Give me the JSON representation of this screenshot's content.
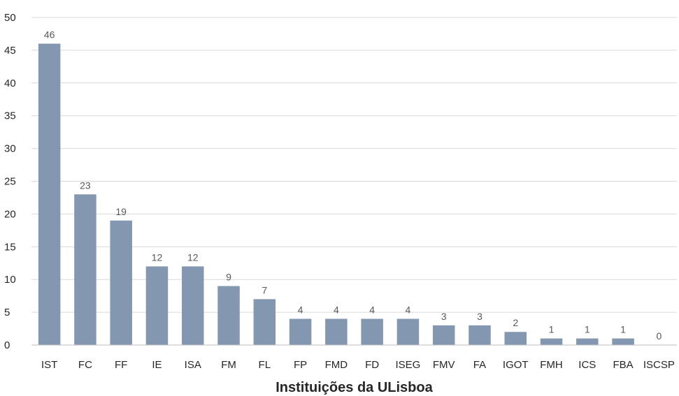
{
  "chart_data": {
    "type": "bar",
    "title": "",
    "xlabel": "Instituições da ULisboa",
    "ylabel": "",
    "categories": [
      "IST",
      "FC",
      "FF",
      "IE",
      "ISA",
      "FM",
      "FL",
      "FP",
      "FMD",
      "FD",
      "ISEG",
      "FMV",
      "FA",
      "IGOT",
      "FMH",
      "ICS",
      "FBA",
      "ISCSP"
    ],
    "values": [
      46,
      23,
      19,
      12,
      12,
      9,
      7,
      4,
      4,
      4,
      4,
      3,
      3,
      2,
      1,
      1,
      1,
      0
    ],
    "ylim": [
      0,
      50
    ],
    "yticks": [
      0,
      5,
      10,
      15,
      20,
      25,
      30,
      35,
      40,
      45,
      50
    ],
    "grid": true,
    "data_labels": true,
    "legend": "none",
    "colors": {
      "bar": "#8497b0",
      "grid": "#d9d9d9",
      "axis": "#bfbfbf",
      "text": "#262626",
      "data_label": "#595959"
    }
  }
}
